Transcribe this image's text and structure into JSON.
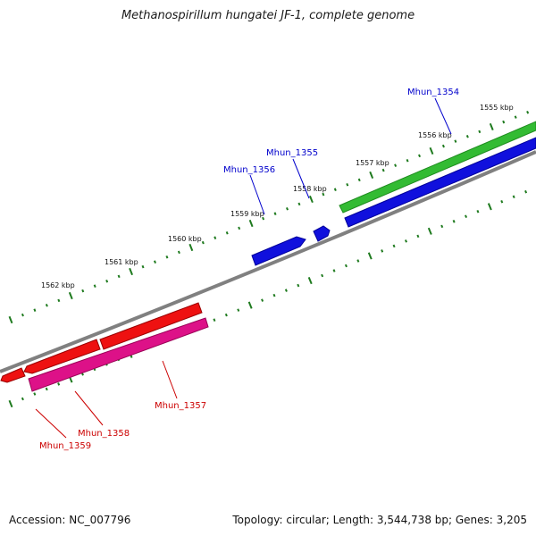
{
  "title": "Methanospirillum hungatei JF-1, complete genome",
  "footer": {
    "accession": "Accession: NC_007796",
    "topology": "Topology: circular; Length: 3,544,738 bp; Genes: 3,205"
  },
  "tick_labels": [
    "1555 kbp",
    "1556 kbp",
    "1557 kbp",
    "1558 kbp",
    "1559 kbp",
    "1560 kbp",
    "1561 kbp",
    "1562 kbp"
  ],
  "genes": [
    {
      "name": "Mhun_1354",
      "strand": "forward",
      "color": "#0000cc"
    },
    {
      "name": "Mhun_1355",
      "strand": "forward",
      "color": "#0000cc"
    },
    {
      "name": "Mhun_1356",
      "strand": "forward",
      "color": "#0000cc"
    },
    {
      "name": "Mhun_1357",
      "strand": "reverse",
      "color": "#cc0000"
    },
    {
      "name": "Mhun_1358",
      "strand": "reverse",
      "color": "#cc0000"
    },
    {
      "name": "Mhun_1359",
      "strand": "reverse",
      "color": "#cc0000"
    }
  ],
  "feature_colors": {
    "cds_forward": "#1010dd",
    "cds_reverse": "#ee1111",
    "gene_forward": "#33bb33",
    "gene_reverse": "#dd1188",
    "backbone": "#808080",
    "ticks": "#1e7a1e"
  }
}
